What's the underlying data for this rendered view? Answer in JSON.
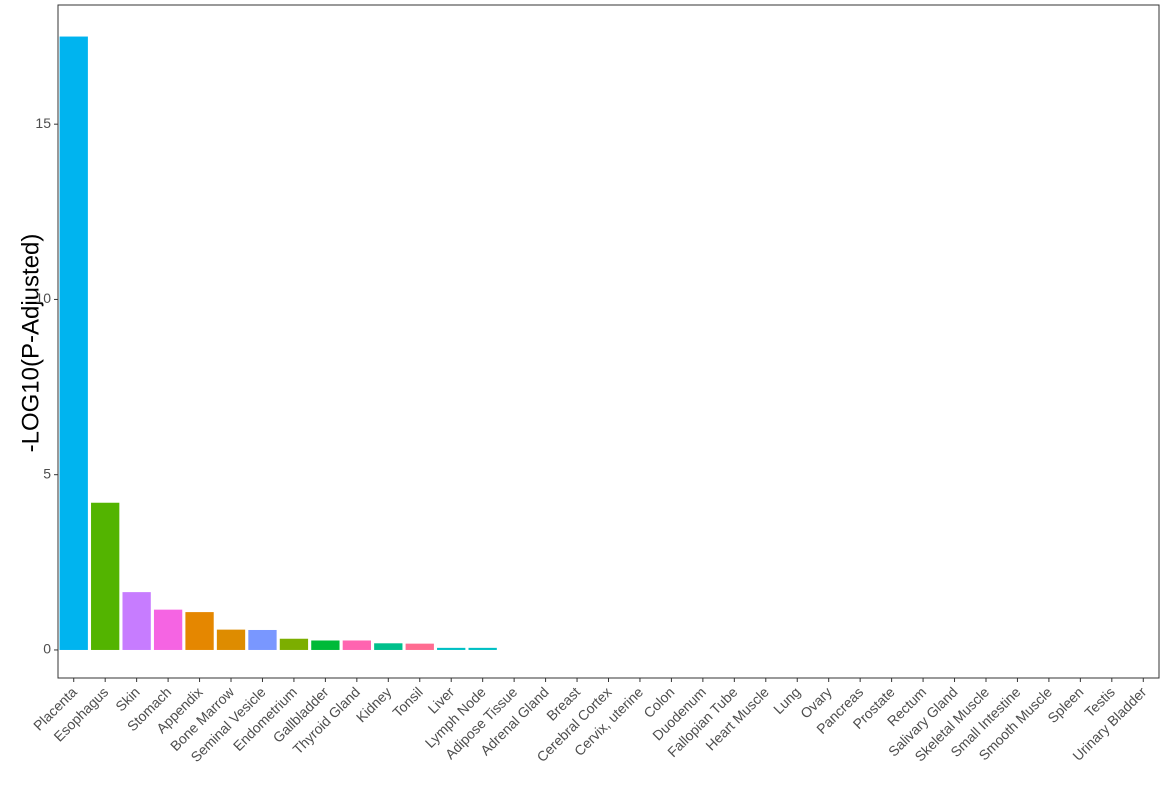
{
  "chart_data": {
    "type": "bar",
    "title": "",
    "xlabel": "",
    "ylabel": "-LOG10(P-Adjusted)",
    "ylim": [
      -0.8,
      18.4
    ],
    "yticks": [
      0,
      5,
      10,
      15
    ],
    "grid": false,
    "legend": "none",
    "categories": [
      "Placenta",
      "Esophagus",
      "Skin",
      "Stomach",
      "Appendix",
      "Bone Marrow",
      "Seminal Vesicle",
      "Endometrium",
      "Gallbladder",
      "Thyroid Gland",
      "Kidney",
      "Tonsil",
      "Liver",
      "Lymph Node",
      "Adipose Tissue",
      "Adrenal Gland",
      "Breast",
      "Cerebral Cortex",
      "Cervix, uterine",
      "Colon",
      "Duodenum",
      "Fallopian Tube",
      "Heart Muscle",
      "Lung",
      "Ovary",
      "Pancreas",
      "Prostate",
      "Rectum",
      "Salivary Gland",
      "Skeletal Muscle",
      "Small Intestine",
      "Smooth Muscle",
      "Spleen",
      "Testis",
      "Urinary Bladder"
    ],
    "values": [
      17.5,
      4.2,
      1.65,
      1.15,
      1.08,
      0.58,
      0.57,
      0.32,
      0.27,
      0.27,
      0.19,
      0.18,
      0.06,
      0.06,
      0,
      0,
      0,
      0,
      0,
      0,
      0,
      0,
      0,
      0,
      0,
      0,
      0,
      0,
      0,
      0,
      0,
      0,
      0,
      0,
      0
    ],
    "colors": [
      "#00B4EF",
      "#53B400",
      "#C77CFF",
      "#F564E3",
      "#E58700",
      "#DE8C00",
      "#7997FF",
      "#7CAE00",
      "#00BA38",
      "#FF64B0",
      "#00C08B",
      "#FF6C91",
      "#00BFC4",
      "#00BFC4",
      "#FFFFFF",
      "#FFFFFF",
      "#FFFFFF",
      "#FFFFFF",
      "#FFFFFF",
      "#FFFFFF",
      "#FFFFFF",
      "#FFFFFF",
      "#FFFFFF",
      "#FFFFFF",
      "#FFFFFF",
      "#FFFFFF",
      "#FFFFFF",
      "#FFFFFF",
      "#FFFFFF",
      "#FFFFFF",
      "#FFFFFF",
      "#FFFFFF",
      "#FFFFFF",
      "#FFFFFF",
      "#FFFFFF"
    ]
  }
}
